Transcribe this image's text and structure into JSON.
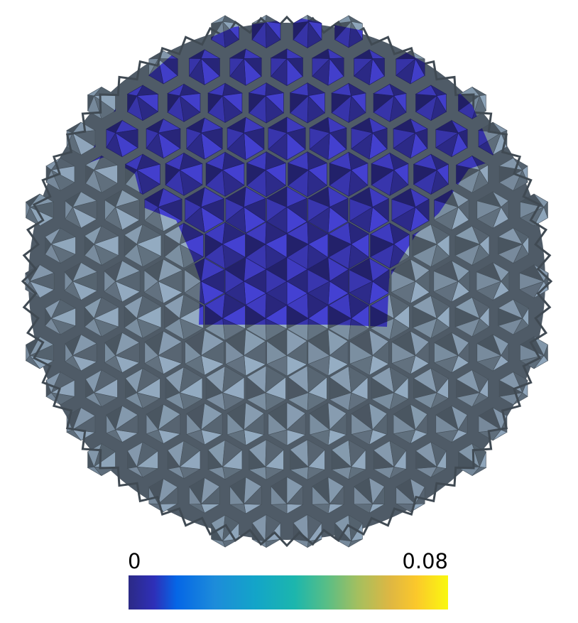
{
  "colorbar": {
    "min_label": "0",
    "max_label": "0.08",
    "min": 0,
    "max": 0.08,
    "colormap": "parula"
  },
  "mesh": {
    "shape": "spiky-icosphere",
    "base_color": "#7f93a6",
    "highlight_color": "#3a37b2"
  }
}
